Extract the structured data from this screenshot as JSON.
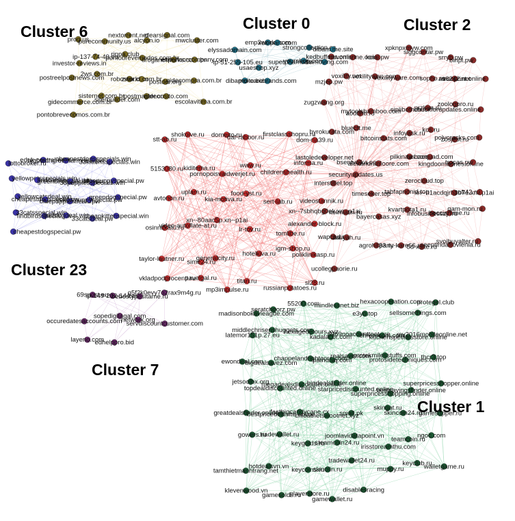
{
  "clusters": [
    {
      "id": "c0",
      "title": "Cluster 0",
      "color": "#1f6f86",
      "edge_color": "#9cc3cc",
      "nodes": [
        "elyssadomain.com",
        "emp3world.com",
        "xex-pars.com",
        "strongcollection.cc",
        "dibam.me.site",
        "ip-51-255-105.eu",
        "usaeshop.xyz",
        "superpharm.de",
        "yourshop.com",
        "dibamoving.com",
        "dibamoite.biz",
        "pro-carebrands.com"
      ]
    },
    {
      "id": "c1",
      "title": "Cluster 1",
      "color": "#1d5a34",
      "edge_color": "#7fd0a0",
      "nodes": [
        "madisonbokavleague.com",
        "seratchgorz.pw",
        "55200.com",
        "mindlessnet.biz",
        "e3yo.top",
        "hexacooperation.com",
        "sellsomethings.com",
        "protegel.club",
        "latemor151p.27.eu",
        "middlechrisenshuggets.com",
        "hexagedetours.xyz",
        "kadalacor.com",
        "6969noacounttoot.me",
        "chivoncom.com",
        "kuchenspecialsstore.online",
        "my2016mobileonline.net",
        "ewondeal.com",
        "bigdealsavez.com",
        "chappelandrightcore.com",
        "pathuniq.com",
        "realsaver.com",
        "protekmilesstuffs.com",
        "protosidetechniques.com",
        "thcr3.top",
        "jetsoolbx.org",
        "topdealdiscounted.online",
        "megadealsdiscounter.online",
        "bigdealsfinder.online",
        "starpricediscounted.online",
        "superpricesshopping.online",
        "bestsavingsfinder.online",
        "superpricesshopper.online",
        "greatdealsfinder.online",
        "bestpricedealsite.online",
        "fastbigcandycane.cx",
        "chloatnetswootnet.xyz",
        "small.pk",
        "skingat.ru",
        "skincoin24.ru",
        "gamesupper.ru",
        "gowers.ru",
        "tradewallet.ru",
        "keygolds.ru",
        "steamcoin24.ru",
        "joomlavidatapoint.vn",
        "irisstoreamthu.com",
        "teamcoin.ru",
        "ngoc.com",
        "tamthietmanhtrang.net",
        "hotdealsvn.vn",
        "keycoins.ru",
        "skinolin.ru",
        "tradewallet24.ru",
        "muppy.ru",
        "keyclub.ru",
        "walletgame.ru",
        "klevenwood.vn",
        "gamesolds.ru",
        "playerstore.ru",
        "gamewallet.ru",
        "disablesracing"
      ]
    },
    {
      "id": "c2",
      "title": "Cluster 2",
      "color": "#8a2a28",
      "edge_color": "#f2a8a8",
      "nodes": [
        "kedbuffons.online",
        "nuvomarine.com",
        "kciai.pw",
        "xpknpxmyw.com",
        "siggcontar.pw",
        "srryb.pw",
        "binpl.pw",
        "mzjep.pw",
        "voxility.net",
        "voxilitywon.com",
        "voxilityware.com",
        "sopho.ru",
        "as6242.net",
        "trooprint.online",
        "zugzwang.org",
        "aodtihb.ru",
        "mytoolsbamboo.com",
        "siplibothes.io",
        "nrzkun.ru",
        "zoologpro.ru",
        "checkforupdates.online",
        "hyrokurata.com",
        "bluectt.me",
        "bitcoinstats.com",
        "infoyask.ru",
        "kcs.ru",
        "zosjest.ru",
        "polycracks.com",
        "lastoledeveloper.net",
        "bsentvolka.com",
        "alexandramoore.com",
        "pilkinavs.com",
        "ta-bacquad.com",
        "kingdoomadnes.online",
        "trocas.pw",
        "interstitiel.top",
        "securityupdates.us",
        "timeseker.top",
        "tabfapnonid.top",
        "zerocloud.top",
        "xn--b1acdqjrh3b7e.xn--p1ai",
        "soft42.ru",
        "xn--7sbhqbg0ek.xn--p1ai",
        "itelmiatin.ru",
        "bayercasas.xyz",
        "kvartpota1.ru",
        "infobusinesszp.ru",
        "bocciamme.ru",
        "gam-mon.ru",
        "wapchd.ru",
        "aaliyah.ru",
        "agrohit33.ru",
        "party-kare66.ru",
        "5d-xsite.ru",
        "seeptindafrovienia.ru",
        "svoibuyalter.ru",
        "ucollegpaorie.ru"
      ]
    },
    {
      "id": "c3",
      "title": "",
      "color": "#c62b2b",
      "edge_color": "#f06a6a",
      "nodes": [
        "stt-ab.ru",
        "shokoive.ru",
        "domeito.ru",
        "daf-rabbor.ru",
        "firstclassshopru.ru",
        "dom-ria39.ru",
        "5153080.ru",
        "kiditema.ru",
        "pornopoisvaidwerjet.ru",
        "www.ru",
        "childrenshealth.ru",
        "informa.ru",
        "avtonon.ru",
        "uplam.ru",
        "kia-motiva.ru",
        "food-yst.ru",
        "sert-lab.ru",
        "videostannik.ru",
        "osinnitkatu.ru",
        "video-autoflate-at.ru",
        "xn--80aac5p.xn--p1ai",
        "lr-tov.ru",
        "tomlibe.ru",
        "alexander-block.ru",
        "taylor-lautner.ru",
        "sime24.ru",
        "generalcity.ru",
        "hotelkiva.ru",
        "igm-shop.ru",
        "poliklinikasp.ru",
        "vkladpodprocenti.ru",
        "pavelgal.ru",
        "mp3impulse.ru",
        "titan.ru",
        "russianpotatoes.ru",
        "sl28.ru"
      ]
    },
    {
      "id": "c6",
      "title": "Cluster 6",
      "color": "#7a6b22",
      "edge_color": "#f0e3a8",
      "nodes": [
        "prog.us",
        "purecommunity.us",
        "nextorrent.net",
        "alcyon.io",
        "clearsignal.com",
        "mwcluster.com",
        "investor-reviews.in",
        "ip-137-74-49.eu",
        "rippa.club",
        "pontobrevemodos.com.br",
        "droganetworks.com.br",
        "expertsorcompany.com",
        "postreelpostnews.com",
        "2ws.com.br",
        "robostar.com",
        "zworld.com.br",
        "postder.org",
        "gidecompra.com.br",
        "gidecommerce.com.br",
        "sisternet.com.br",
        "siterbuilder.com",
        "postmaster.com",
        "gideonsito.com",
        "escolavitima.com.br",
        "pontobrevecomos.com.br"
      ]
    },
    {
      "id": "c7",
      "title": "Cluster 7",
      "color": "#6a2a6a",
      "edge_color": "#c9a0d0",
      "nodes": [
        "69spost.eu",
        "ip-149-202-144.eu",
        "bebestypesitame.ru",
        "q5f2k0evy7o2rax9m4g.ru",
        "occuredatesaccounts.com",
        "sopedigitagal.com",
        "network.org",
        "servdiscountcustomer.com",
        "layerio.com",
        "edhelppro.bid"
      ]
    },
    {
      "id": "c23",
      "title": "Cluster 23",
      "color": "#3a33a8",
      "edge_color": "#aaaaf0",
      "nodes": [
        "lottobroker.ru",
        "eduk-central.net",
        "hightechgreenfarmdeal.pw",
        "cheapestdogsspecials.win",
        "33kittensspecials.win",
        "yellowpetsspecials.win",
        "findcatsspecial.win",
        "greenbirdsspecials.win",
        "33puppiesspecials.win",
        "bluepuppyspecial.pw",
        "yellowcatsdeal.win",
        "cheapestdogspecial.pw",
        "bluepuppiesdeals.pw",
        "yellowpuppyspecial.pw",
        "greendogspecial.pw",
        "33catsspecial.win",
        "findbirdsspecial.pw",
        "baddogdeal.win",
        "33catsdeal.pw",
        "cheapkittenspecial.win",
        "cheapestdogspecial.pw"
      ]
    }
  ]
}
